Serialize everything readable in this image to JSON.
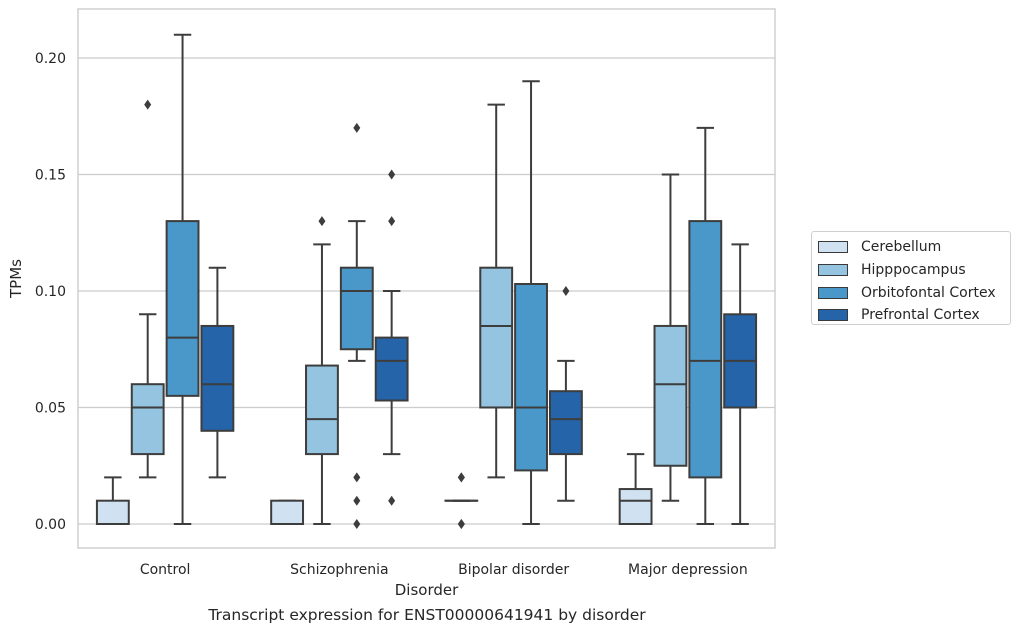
{
  "chart_data": {
    "type": "box",
    "xlabel": "Disorder",
    "ylabel": "TPMs",
    "ylim": [
      -0.01,
      0.22
    ],
    "yticks": [
      0.0,
      0.05,
      0.1,
      0.15,
      0.2
    ],
    "ytick_labels": [
      "0.00",
      "0.05",
      "0.10",
      "0.15",
      "0.20"
    ],
    "grid": "horizontal",
    "legend_position": "right-outside",
    "categories": [
      "Control",
      "Schizophrenia",
      "Bipolar disorder",
      "Major depression"
    ],
    "series": [
      {
        "name": "Cerebellum",
        "color": "#d0e1f2",
        "boxes": [
          {
            "whislo": 0.0,
            "q1": 0.0,
            "med": 0.0,
            "q3": 0.01,
            "whishi": 0.02,
            "fliers": []
          },
          {
            "whislo": 0.0,
            "q1": 0.0,
            "med": 0.0,
            "q3": 0.01,
            "whishi": 0.01,
            "fliers": []
          },
          {
            "whislo": 0.01,
            "q1": 0.01,
            "med": 0.01,
            "q3": 0.01,
            "whishi": 0.01,
            "fliers": [
              0.0,
              0.0,
              0.02,
              0.02
            ]
          },
          {
            "whislo": 0.0,
            "q1": 0.0,
            "med": 0.01,
            "q3": 0.015,
            "whishi": 0.03,
            "fliers": []
          }
        ]
      },
      {
        "name": "Hipppocampus",
        "color": "#94c4df",
        "boxes": [
          {
            "whislo": 0.02,
            "q1": 0.03,
            "med": 0.05,
            "q3": 0.06,
            "whishi": 0.09,
            "fliers": [
              0.18
            ]
          },
          {
            "whislo": 0.0,
            "q1": 0.03,
            "med": 0.045,
            "q3": 0.068,
            "whishi": 0.12,
            "fliers": [
              0.13
            ]
          },
          {
            "whislo": 0.02,
            "q1": 0.05,
            "med": 0.085,
            "q3": 0.11,
            "whishi": 0.18,
            "fliers": []
          },
          {
            "whislo": 0.01,
            "q1": 0.025,
            "med": 0.06,
            "q3": 0.085,
            "whishi": 0.15,
            "fliers": []
          }
        ]
      },
      {
        "name": "Orbitofontal Cortex",
        "color": "#4a98c9",
        "boxes": [
          {
            "whislo": 0.0,
            "q1": 0.055,
            "med": 0.08,
            "q3": 0.13,
            "whishi": 0.21,
            "fliers": []
          },
          {
            "whislo": 0.07,
            "q1": 0.075,
            "med": 0.1,
            "q3": 0.11,
            "whishi": 0.13,
            "fliers": [
              0.0,
              0.01,
              0.02,
              0.17
            ]
          },
          {
            "whislo": 0.0,
            "q1": 0.023,
            "med": 0.05,
            "q3": 0.103,
            "whishi": 0.19,
            "fliers": []
          },
          {
            "whislo": 0.0,
            "q1": 0.02,
            "med": 0.07,
            "q3": 0.13,
            "whishi": 0.17,
            "fliers": []
          }
        ]
      },
      {
        "name": "Prefrontal Cortex",
        "color": "#2564a8",
        "boxes": [
          {
            "whislo": 0.02,
            "q1": 0.04,
            "med": 0.06,
            "q3": 0.085,
            "whishi": 0.11,
            "fliers": []
          },
          {
            "whislo": 0.03,
            "q1": 0.053,
            "med": 0.07,
            "q3": 0.08,
            "whishi": 0.1,
            "fliers": [
              0.01,
              0.13,
              0.15
            ]
          },
          {
            "whislo": 0.01,
            "q1": 0.03,
            "med": 0.045,
            "q3": 0.057,
            "whishi": 0.07,
            "fliers": [
              0.1
            ]
          },
          {
            "whislo": 0.0,
            "q1": 0.05,
            "med": 0.07,
            "q3": 0.09,
            "whishi": 0.12,
            "fliers": []
          }
        ]
      }
    ]
  },
  "caption": "Transcript expression for ENST00000641941 by disorder"
}
